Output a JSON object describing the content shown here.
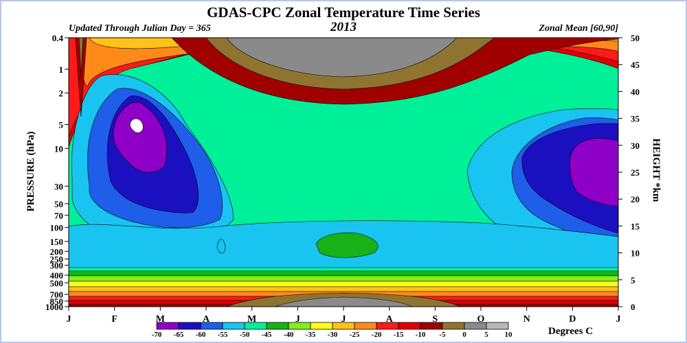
{
  "chart_data": {
    "type": "heatmap",
    "title": "GDAS-CPC Zonal Temperature Time Series",
    "subtitle_left": "Updated Through Julian Day = 365",
    "subtitle_center": "2013",
    "subtitle_right": "Zonal Mean [60,90]",
    "ylabel_left": "PRESSURE (hPa)",
    "ylabel_right": "HEIGHT *km",
    "colorbar_label": "Degrees C",
    "x_ticks": [
      "J",
      "F",
      "M",
      "A",
      "M",
      "J",
      "J",
      "A",
      "S",
      "O",
      "N",
      "D",
      "J"
    ],
    "y_left_ticks": [
      "0.4",
      "1",
      "2",
      "5",
      "10",
      "30",
      "50",
      "70",
      "100",
      "150",
      "200",
      "250",
      "300",
      "400",
      "500",
      "700",
      "850",
      "1000"
    ],
    "y_left_values": [
      0.4,
      1,
      2,
      5,
      10,
      30,
      50,
      70,
      100,
      150,
      200,
      250,
      300,
      400,
      500,
      700,
      850,
      1000
    ],
    "y_right_ticks": [
      "50",
      "45",
      "40",
      "35",
      "30",
      "25",
      "20",
      "15",
      "10",
      "5",
      "0"
    ],
    "y_right_values": [
      50,
      45,
      40,
      35,
      30,
      25,
      20,
      15,
      10,
      5,
      0
    ],
    "levels": [
      -70,
      -65,
      -60,
      -55,
      -50,
      -45,
      -40,
      -35,
      -30,
      -25,
      -20,
      -15,
      -10,
      -5,
      0,
      5,
      10
    ],
    "level_labels": [
      "-70",
      "-65",
      "-60",
      "-55",
      "-50",
      "-45",
      "-40",
      "-35",
      "-30",
      "-25",
      "-20",
      "-15",
      "-10",
      "-5",
      "0",
      "5",
      "10"
    ],
    "colors": [
      "#8e00c8",
      "#1a10c0",
      "#1f5ee8",
      "#19c4f0",
      "#00f09a",
      "#17b217",
      "#7ff01a",
      "#ffff1a",
      "#ffc21a",
      "#ff8a1a",
      "#ff1a1a",
      "#e00000",
      "#a00000",
      "#8e7430",
      "#8a8a8a",
      "#b8b8b8"
    ],
    "grid": false
  }
}
